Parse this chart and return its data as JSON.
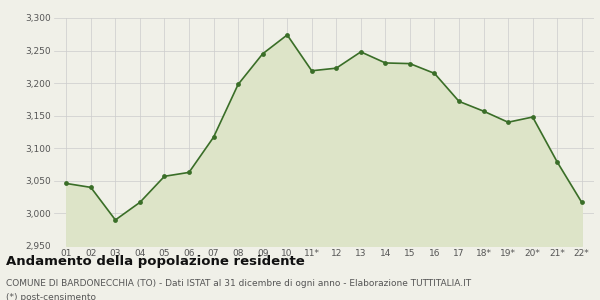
{
  "x_labels": [
    "01",
    "02",
    "03",
    "04",
    "05",
    "06",
    "07",
    "08",
    "09",
    "10",
    "11*",
    "12",
    "13",
    "14",
    "15",
    "16",
    "17",
    "18*",
    "19*",
    "20*",
    "21*",
    "22*"
  ],
  "y_values": [
    3046,
    3040,
    2990,
    3017,
    3057,
    3063,
    3117,
    3198,
    3245,
    3274,
    3219,
    3223,
    3248,
    3231,
    3230,
    3215,
    3172,
    3157,
    3140,
    3148,
    3079,
    3017
  ],
  "line_color": "#3a6e28",
  "fill_color": "#dde4c8",
  "marker_color": "#3a6e28",
  "background_color": "#f0f0e8",
  "grid_color": "#cccccc",
  "ylim": [
    2950,
    3300
  ],
  "yticks": [
    2950,
    3000,
    3050,
    3100,
    3150,
    3200,
    3250,
    3300
  ],
  "title": "Andamento della popolazione residente",
  "subtitle": "COMUNE DI BARDONECCHIA (TO) - Dati ISTAT al 31 dicembre di ogni anno - Elaborazione TUTTITALIA.IT",
  "footnote": "(*) post-censimento",
  "title_fontsize": 9.5,
  "subtitle_fontsize": 6.5,
  "footnote_fontsize": 6.5
}
